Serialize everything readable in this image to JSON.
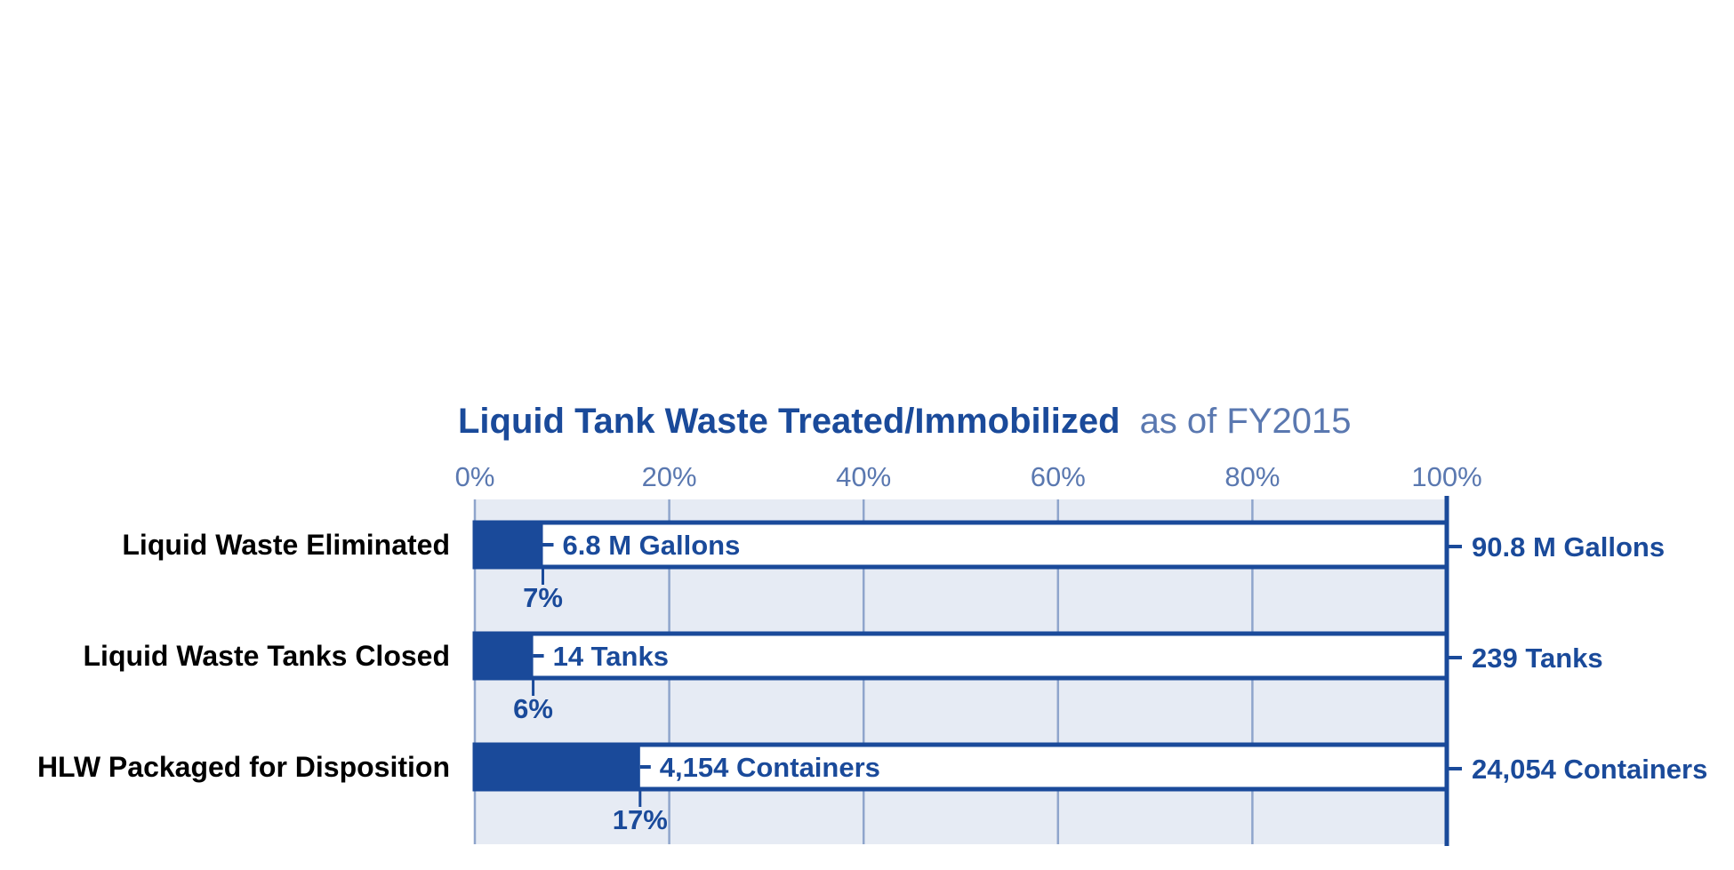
{
  "chart_data": {
    "type": "bar",
    "title": "Liquid Tank Waste Treated/Immobilized",
    "subtitle": "as of FY2015",
    "x_ticks": [
      "0%",
      "20%",
      "40%",
      "60%",
      "80%",
      "100%"
    ],
    "xlim": [
      0,
      100
    ],
    "categories": [
      "Liquid Waste Eliminated",
      "Liquid Waste Tanks Closed",
      "HLW Packaged for Disposition"
    ],
    "values": [
      7,
      6,
      17
    ],
    "percent_labels": [
      "7%",
      "6%",
      "17%"
    ],
    "completed_labels": [
      "6.8 M Gallons",
      "14 Tanks",
      "4,154 Containers"
    ],
    "total_labels": [
      "90.8 M Gallons",
      "239 Tanks",
      "24,054 Containers"
    ],
    "grid": true,
    "colors": {
      "progress": "#1a4a9a",
      "outline": "#1a4a9a",
      "background": "#e6ebf4",
      "grid": "#8fa5cc",
      "tick_text": "#5a78b0"
    }
  }
}
